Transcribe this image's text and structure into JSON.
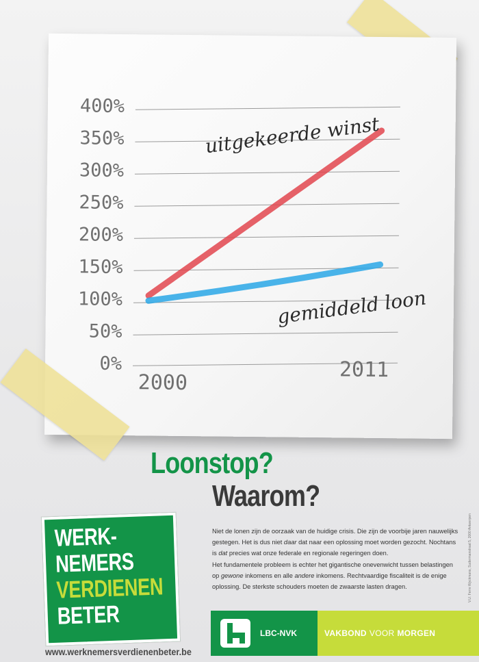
{
  "chart": {
    "y_ticks": [
      "400%",
      "350%",
      "300%",
      "250%",
      "200%",
      "150%",
      "100%",
      "50%",
      "0%"
    ],
    "y_values": [
      400,
      350,
      300,
      250,
      200,
      150,
      100,
      50,
      0
    ],
    "x_start_label": "2000",
    "x_end_label": "2011",
    "series": [
      {
        "name": "uitgekeerde winst",
        "color": "#e2474f",
        "start": 105,
        "end": 365
      },
      {
        "name": "gemiddeld loon",
        "color": "#2aa7e6",
        "start": 97,
        "end": 157
      }
    ]
  },
  "headline": {
    "line1": "Loonstop?",
    "line2": "Waarom?"
  },
  "logo": {
    "line1": "WERK-",
    "line2": "NEMERS",
    "line3": "VERDIENEN",
    "line4": "BETER"
  },
  "website": "www.werknemersverdienenbeter.be",
  "body": {
    "p1_a": "Niet de lonen zijn de oorzaak van de huidige crisis. Die zijn de voorbije jaren nauwelijks gestegen. Het is dus niet ",
    "p1_em1": "daar",
    "p1_b": " dat naar een oplossing moet worden gezocht. Nochtans is ",
    "p1_em2": "dat",
    "p1_c": " precies wat onze federale en regionale regeringen doen.",
    "p2_a": "Het fundamentele probleem is echter het gigantische onevenwicht tussen belastingen op ",
    "p2_em1": "gewone",
    "p2_b": " inkomens en alle ",
    "p2_em2": "andere",
    "p2_c": " inkomens. Rechtvaardige fiscaliteit is de enige oplossing. De sterkste schouders moeten de zwaarste lasten dragen."
  },
  "credit": "V.U. Ferre Wyckmans, Sudermanstraat 5, 2000 Antwerpen",
  "banner": {
    "org": "LBC-NVK",
    "slogan_1": "VAKBOND",
    "slogan_2": "VOOR",
    "slogan_3": "MORGEN"
  }
}
